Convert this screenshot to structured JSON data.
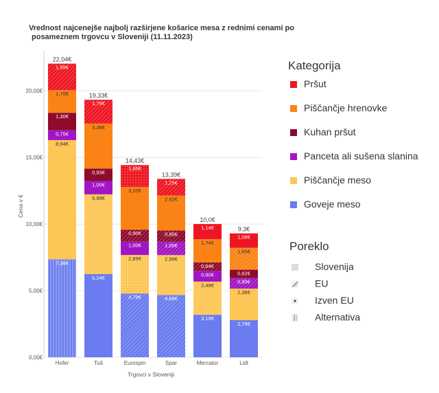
{
  "chart_data": {
    "type": "bar",
    "stacked": true,
    "title_lines": [
      "Vrednost najcenejše najbolj razširjene košarice mesa z rednimi cenami po",
      "posameznem trgovcu v Sloveniji (11.11.2023)"
    ],
    "xlabel": "Trgovci v Sloveniji",
    "ylabel": "Cena v €",
    "ylim": [
      0,
      23
    ],
    "yticks": [
      0,
      5,
      10,
      15,
      20
    ],
    "ytick_labels": [
      "0,00€",
      "5,00€",
      "10,00€",
      "15,00€",
      "20,00€"
    ],
    "grid": true,
    "legend_position": "right",
    "categories": [
      "Hofer",
      "Tuš",
      "Eurospin",
      "Spar",
      "Mercator",
      "Lidl"
    ],
    "totals": [
      22.04,
      19.33,
      14.43,
      13.39,
      10.0,
      9.3
    ],
    "total_labels": [
      "22,04€",
      "19,33€",
      "14,43€",
      "13,39€",
      "10,0€",
      "9,3€"
    ],
    "series": [
      {
        "name": "Goveje meso",
        "color": "#6b7cf0",
        "values": [
          7.36,
          6.24,
          4.79,
          4.68,
          3.19,
          2.79
        ],
        "labels": [
          "7,36€",
          "6,24€",
          "4,79€",
          "4,68€",
          "3,19€",
          "2,79€"
        ],
        "origin": [
          "Alternativa",
          "Slovenija",
          "EU",
          "EU",
          "Slovenija",
          "Slovenija"
        ]
      },
      {
        "name": "Piščančje meso",
        "color": "#fdc655",
        "values": [
          8.94,
          5.99,
          2.89,
          2.99,
          2.49,
          2.36
        ],
        "labels": [
          "8,94€",
          "5,99€",
          "2,89€",
          "2,99€",
          "2,49€",
          "2,36€"
        ],
        "origin": [
          "Slovenija",
          "EU",
          "Izven EU",
          "EU",
          "EU",
          "Slovenija"
        ]
      },
      {
        "name": "Panceta ali sušena slanina",
        "color": "#a215c4",
        "values": [
          0.75,
          1.0,
          1.0,
          1.0,
          0.8,
          0.8
        ],
        "labels": [
          "0,75€",
          "1,00€",
          "1,00€",
          "1,00€",
          "0,80€",
          "0,80€"
        ],
        "origin": [
          "Slovenija",
          "Slovenija",
          "Slovenija",
          "EU",
          "Slovenija",
          "EU"
        ]
      },
      {
        "name": "Kuhan pršut",
        "color": "#8e0b2c",
        "values": [
          1.3,
          0.93,
          0.9,
          0.85,
          0.64,
          0.62
        ],
        "labels": [
          "1,30€",
          "0,93€",
          "0,90€",
          "0,85€",
          "0,64€",
          "0,62€"
        ],
        "origin": [
          "Slovenija",
          "Slovenija",
          "EU",
          "EU",
          "EU",
          "Slovenija"
        ]
      },
      {
        "name": "Piščančje hrenovke",
        "color": "#fb8316",
        "values": [
          1.7,
          3.38,
          3.2,
          2.62,
          1.74,
          1.65
        ],
        "labels": [
          "1,70€",
          "3,38€",
          "3,20€",
          "2,62€",
          "1,74€",
          "1,65€"
        ],
        "origin": [
          "Slovenija",
          "Slovenija",
          "Slovenija",
          "Slovenija",
          "Slovenija",
          "EU"
        ]
      },
      {
        "name": "Pršut",
        "color": "#ee1622",
        "values": [
          1.99,
          1.79,
          1.65,
          1.25,
          1.14,
          1.08
        ],
        "labels": [
          "1,99€",
          "1,79€",
          "1,65€",
          "1,25€",
          "1,14€",
          "1,08€"
        ],
        "origin": [
          "EU",
          "EU",
          "Izven EU",
          "EU",
          "Slovenija",
          "Slovenija"
        ]
      }
    ]
  },
  "legend": {
    "category_title": "Kategorija",
    "category_items": [
      {
        "label": "Pršut",
        "color": "#ee1622"
      },
      {
        "label": "Piščančje hrenovke",
        "color": "#fb8316"
      },
      {
        "label": "Kuhan pršut",
        "color": "#8e0b2c"
      },
      {
        "label": "Panceta ali sušena slanina",
        "color": "#a215c4"
      },
      {
        "label": "Piščančje meso",
        "color": "#fdc655"
      },
      {
        "label": "Goveje meso",
        "color": "#6b7cf0"
      }
    ],
    "origin_title": "Poreklo",
    "origin_items": [
      {
        "label": "Slovenija",
        "pattern": "none"
      },
      {
        "label": "EU",
        "pattern": "diagonal"
      },
      {
        "label": "Izven EU",
        "pattern": "dots"
      },
      {
        "label": "Alternativa",
        "pattern": "vertical"
      }
    ]
  }
}
